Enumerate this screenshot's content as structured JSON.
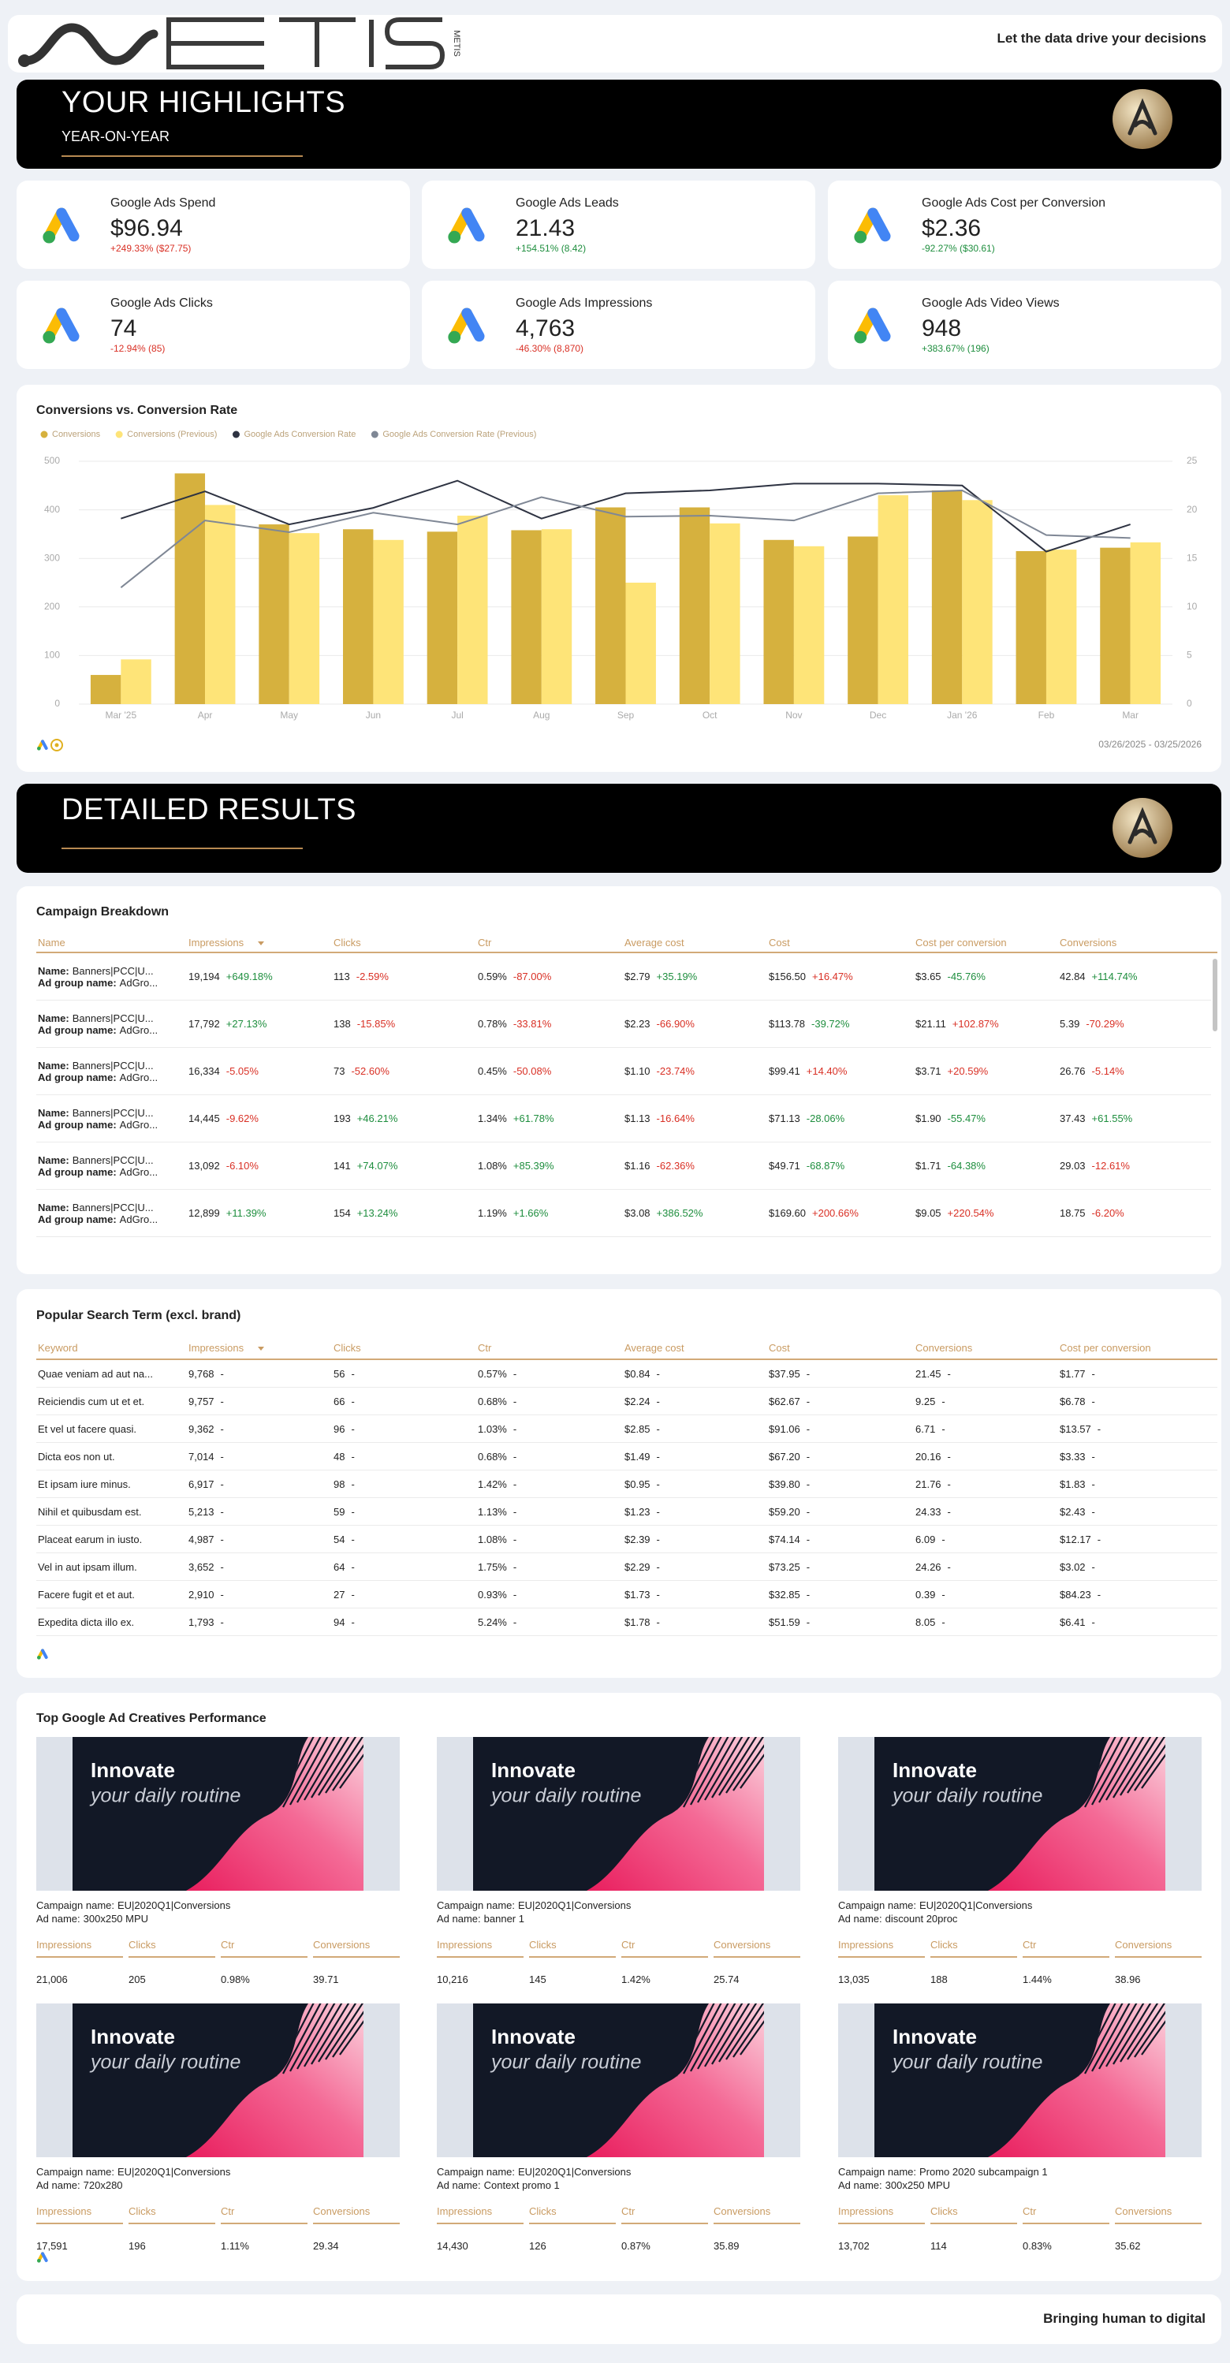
{
  "header": {
    "logo_text": "METIS",
    "tagline": "Let the data drive your decisions"
  },
  "highlights": {
    "title": "YOUR HIGHLIGHTS",
    "subtitle": "YEAR-ON-YEAR"
  },
  "kpis": [
    {
      "label": "Google Ads Spend",
      "value": "$96.94",
      "change": "+249.33% ($27.75)",
      "color": "#d93025"
    },
    {
      "label": "Google Ads Leads",
      "value": "21.43",
      "change": "+154.51% (8.42)",
      "color": "#1e8e3e"
    },
    {
      "label": "Google Ads Cost per Conversion",
      "value": "$2.36",
      "change": "-92.27% ($30.61)",
      "color": "#1e8e3e"
    },
    {
      "label": "Google Ads Clicks",
      "value": "74",
      "change": "-12.94% (85)",
      "color": "#d93025"
    },
    {
      "label": "Google Ads Impressions",
      "value": "4,763",
      "change": "-46.30% (8,870)",
      "color": "#d93025"
    },
    {
      "label": "Google Ads Video Views",
      "value": "948",
      "change": "+383.67% (196)",
      "color": "#1e8e3e"
    }
  ],
  "chart_data": {
    "type": "bar",
    "title": "Conversions vs. Conversion Rate",
    "categories": [
      "Mar '25",
      "Apr",
      "May",
      "Jun",
      "Jul",
      "Aug",
      "Sep",
      "Oct",
      "Nov",
      "Dec",
      "Jan '26",
      "Feb",
      "Mar"
    ],
    "series": [
      {
        "name": "Conversions",
        "type": "bar",
        "color": "#d6b13e",
        "values": [
          60,
          475,
          370,
          360,
          355,
          358,
          405,
          405,
          338,
          345,
          440,
          315,
          322
        ]
      },
      {
        "name": "Conversions (Previous)",
        "type": "bar",
        "color": "#fee478",
        "values": [
          92,
          410,
          352,
          338,
          388,
          360,
          250,
          372,
          325,
          430,
          420,
          318,
          333
        ]
      },
      {
        "name": "Google Ads Conversion Rate",
        "type": "line",
        "axis": "y2",
        "color": "#2e3342",
        "values": [
          19.1,
          21.9,
          18.5,
          20.2,
          23.0,
          19.1,
          21.7,
          22.0,
          22.7,
          22.7,
          22.5,
          15.7,
          18.5
        ]
      },
      {
        "name": "Google Ads Conversion Rate (Previous)",
        "type": "line",
        "axis": "y2",
        "color": "#7f8795",
        "values": [
          12.0,
          18.9,
          17.7,
          19.7,
          18.5,
          21.3,
          19.3,
          19.4,
          18.9,
          21.7,
          22.0,
          17.4,
          17.1
        ]
      }
    ],
    "ylim": [
      0,
      500
    ],
    "yticks": [
      0,
      100,
      200,
      300,
      400,
      500
    ],
    "y2lim": [
      0,
      25
    ],
    "y2ticks": [
      0,
      5,
      10,
      15,
      20,
      25
    ],
    "grid": true,
    "legend": "top-left",
    "date_range": "03/26/2025 - 03/25/2026"
  },
  "detailed": {
    "title": "DETAILED RESULTS"
  },
  "campaign_table": {
    "title": "Campaign Breakdown",
    "name_label": "Name:",
    "ad_group_label": "Ad group name:",
    "columns": [
      "Name",
      "Impressions",
      "Clicks",
      "Ctr",
      "Average cost",
      "Cost",
      "Cost per conversion",
      "Conversions"
    ],
    "rows": [
      {
        "name": "Banners|PCC|U...",
        "ad_group": "AdGro...",
        "cells": [
          [
            "19,194",
            "+649.18%"
          ],
          [
            "113",
            "-2.59%"
          ],
          [
            "0.59%",
            "-87.00%"
          ],
          [
            "$2.79",
            "+35.19%"
          ],
          [
            "$156.50",
            "+16.47%"
          ],
          [
            "$3.65",
            "-45.76%"
          ],
          [
            "42.84",
            "+114.74%"
          ]
        ],
        "colors": [
          "#1e8e3e",
          "#d93025",
          "#d93025",
          "#1e8e3e",
          "#d93025",
          "#1e8e3e",
          "#1e8e3e"
        ]
      },
      {
        "name": "Banners|PCC|U...",
        "ad_group": "AdGro...",
        "cells": [
          [
            "17,792",
            "+27.13%"
          ],
          [
            "138",
            "-15.85%"
          ],
          [
            "0.78%",
            "-33.81%"
          ],
          [
            "$2.23",
            "-66.90%"
          ],
          [
            "$113.78",
            "-39.72%"
          ],
          [
            "$21.11",
            "+102.87%"
          ],
          [
            "5.39",
            "-70.29%"
          ]
        ],
        "colors": [
          "#1e8e3e",
          "#d93025",
          "#d93025",
          "#d93025",
          "#1e8e3e",
          "#d93025",
          "#d93025"
        ]
      },
      {
        "name": "Banners|PCC|U...",
        "ad_group": "AdGro...",
        "cells": [
          [
            "16,334",
            "-5.05%"
          ],
          [
            "73",
            "-52.60%"
          ],
          [
            "0.45%",
            "-50.08%"
          ],
          [
            "$1.10",
            "-23.74%"
          ],
          [
            "$99.41",
            "+14.40%"
          ],
          [
            "$3.71",
            "+20.59%"
          ],
          [
            "26.76",
            "-5.14%"
          ]
        ],
        "colors": [
          "#d93025",
          "#d93025",
          "#d93025",
          "#d93025",
          "#d93025",
          "#d93025",
          "#d93025"
        ]
      },
      {
        "name": "Banners|PCC|U...",
        "ad_group": "AdGro...",
        "cells": [
          [
            "14,445",
            "-9.62%"
          ],
          [
            "193",
            "+46.21%"
          ],
          [
            "1.34%",
            "+61.78%"
          ],
          [
            "$1.13",
            "-16.64%"
          ],
          [
            "$71.13",
            "-28.06%"
          ],
          [
            "$1.90",
            "-55.47%"
          ],
          [
            "37.43",
            "+61.55%"
          ]
        ],
        "colors": [
          "#d93025",
          "#1e8e3e",
          "#1e8e3e",
          "#d93025",
          "#1e8e3e",
          "#1e8e3e",
          "#1e8e3e"
        ]
      },
      {
        "name": "Banners|PCC|U...",
        "ad_group": "AdGro...",
        "cells": [
          [
            "13,092",
            "-6.10%"
          ],
          [
            "141",
            "+74.07%"
          ],
          [
            "1.08%",
            "+85.39%"
          ],
          [
            "$1.16",
            "-62.36%"
          ],
          [
            "$49.71",
            "-68.87%"
          ],
          [
            "$1.71",
            "-64.38%"
          ],
          [
            "29.03",
            "-12.61%"
          ]
        ],
        "colors": [
          "#d93025",
          "#1e8e3e",
          "#1e8e3e",
          "#d93025",
          "#1e8e3e",
          "#1e8e3e",
          "#d93025"
        ]
      },
      {
        "name": "Banners|PCC|U...",
        "ad_group": "AdGro...",
        "cells": [
          [
            "12,899",
            "+11.39%"
          ],
          [
            "154",
            "+13.24%"
          ],
          [
            "1.19%",
            "+1.66%"
          ],
          [
            "$3.08",
            "+386.52%"
          ],
          [
            "$169.60",
            "+200.66%"
          ],
          [
            "$9.05",
            "+220.54%"
          ],
          [
            "18.75",
            "-6.20%"
          ]
        ],
        "colors": [
          "#1e8e3e",
          "#1e8e3e",
          "#1e8e3e",
          "#1e8e3e",
          "#d93025",
          "#d93025",
          "#d93025"
        ]
      }
    ]
  },
  "search_table": {
    "title": "Popular Search Term (excl. brand)",
    "columns": [
      "Keyword",
      "Impressions",
      "Clicks",
      "Ctr",
      "Average cost",
      "Cost",
      "Conversions",
      "Cost per conversion"
    ],
    "empty_change": "-",
    "rows": [
      [
        "Quae veniam ad aut na...",
        "9,768",
        "56",
        "0.57%",
        "$0.84",
        "$37.95",
        "21.45",
        "$1.77"
      ],
      [
        "Reiciendis cum ut et et.",
        "9,757",
        "66",
        "0.68%",
        "$2.24",
        "$62.67",
        "9.25",
        "$6.78"
      ],
      [
        "Et vel ut facere quasi.",
        "9,362",
        "96",
        "1.03%",
        "$2.85",
        "$91.06",
        "6.71",
        "$13.57"
      ],
      [
        "Dicta eos non ut.",
        "7,014",
        "48",
        "0.68%",
        "$1.49",
        "$67.20",
        "20.16",
        "$3.33"
      ],
      [
        "Et ipsam iure minus.",
        "6,917",
        "98",
        "1.42%",
        "$0.95",
        "$39.80",
        "21.76",
        "$1.83"
      ],
      [
        "Nihil et quibusdam est.",
        "5,213",
        "59",
        "1.13%",
        "$1.23",
        "$59.20",
        "24.33",
        "$2.43"
      ],
      [
        "Placeat earum in iusto.",
        "4,987",
        "54",
        "1.08%",
        "$2.39",
        "$74.14",
        "6.09",
        "$12.17"
      ],
      [
        "Vel in aut ipsam illum.",
        "3,652",
        "64",
        "1.75%",
        "$2.29",
        "$73.25",
        "24.26",
        "$3.02"
      ],
      [
        "Facere fugit et et aut.",
        "2,910",
        "27",
        "0.93%",
        "$1.73",
        "$32.85",
        "0.39",
        "$84.23"
      ],
      [
        "Expedita dicta illo ex.",
        "1,793",
        "94",
        "5.24%",
        "$1.78",
        "$51.59",
        "8.05",
        "$6.41"
      ]
    ]
  },
  "creatives": {
    "title": "Top Google Ad Creatives Performance",
    "headline": "Innovate",
    "tagline": "your daily routine",
    "campaign_label": "Campaign name:",
    "ad_label": "Ad name:",
    "columns": [
      "Impressions",
      "Clicks",
      "Ctr",
      "Conversions"
    ],
    "items": [
      {
        "campaign": "EU|2020Q1|Conversions",
        "ad": "300x250 MPU",
        "stats": [
          "21,006",
          "205",
          "0.98%",
          "39.71"
        ]
      },
      {
        "campaign": "EU|2020Q1|Conversions",
        "ad": "banner 1",
        "stats": [
          "10,216",
          "145",
          "1.42%",
          "25.74"
        ]
      },
      {
        "campaign": "EU|2020Q1|Conversions",
        "ad": "discount 20proc",
        "stats": [
          "13,035",
          "188",
          "1.44%",
          "38.96"
        ]
      },
      {
        "campaign": "EU|2020Q1|Conversions",
        "ad": "720x280",
        "stats": [
          "17,591",
          "196",
          "1.11%",
          "29.34"
        ]
      },
      {
        "campaign": "EU|2020Q1|Conversions",
        "ad": "Context promo 1",
        "stats": [
          "14,430",
          "126",
          "0.87%",
          "35.89"
        ]
      },
      {
        "campaign": "Promo 2020 subcampaign 1",
        "ad": "300x250 MPU",
        "stats": [
          "13,702",
          "114",
          "0.83%",
          "35.62"
        ]
      }
    ]
  },
  "footer": {
    "text": "Bringing human to digital"
  }
}
